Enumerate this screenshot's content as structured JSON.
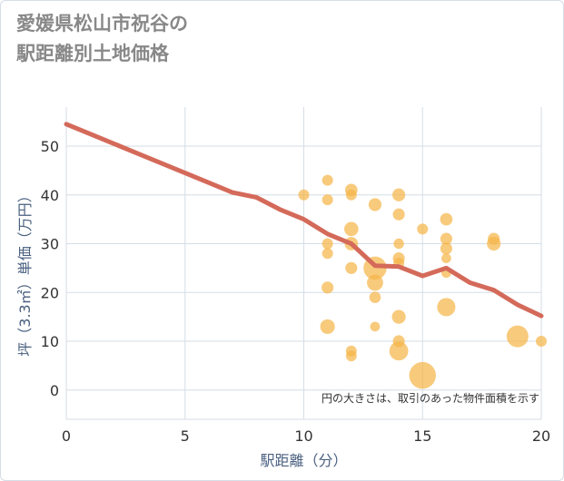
{
  "title": {
    "line1": "愛媛県松山市祝谷の",
    "line2": "駅距離別土地価格"
  },
  "colors": {
    "line": "#d46a5a",
    "bubble": "#f5b54a",
    "grid": "#d5dde6",
    "axis_label": "#4a6080"
  },
  "chart_data": {
    "type": "scatter",
    "title": "愛媛県松山市祝谷の駅距離別土地価格",
    "xlabel": "駅距離（分）",
    "ylabel": "坪（3.3㎡）単価（万円）",
    "xlim": [
      0,
      20
    ],
    "ylim": [
      -6,
      58
    ],
    "xticks": [
      0,
      5,
      10,
      15,
      20
    ],
    "yticks": [
      0,
      10,
      20,
      30,
      40,
      50
    ],
    "xtick_labels": [
      "0",
      "5",
      "10",
      "15",
      "20"
    ],
    "ytick_labels": [
      "0",
      "10",
      "20",
      "30",
      "40",
      "50"
    ],
    "note": "円の大きさは、取引のあった物件面積を示す",
    "series": [
      {
        "name": "trend",
        "type": "line",
        "x": [
          0,
          1,
          2,
          3,
          4,
          5,
          6,
          7,
          8,
          9,
          10,
          11,
          12,
          13,
          14,
          15,
          16,
          17,
          18,
          19,
          20
        ],
        "y": [
          54.5,
          52.5,
          50.5,
          48.5,
          46.5,
          44.5,
          42.5,
          40.5,
          39.5,
          37,
          35,
          32,
          30,
          25.5,
          25.3,
          23.4,
          25,
          22,
          20.5,
          17.5,
          15.2
        ]
      },
      {
        "name": "transactions",
        "type": "scatter",
        "points": [
          {
            "x": 10,
            "y": 40,
            "size": 1
          },
          {
            "x": 11,
            "y": 43,
            "size": 1
          },
          {
            "x": 11,
            "y": 39,
            "size": 1
          },
          {
            "x": 11,
            "y": 30,
            "size": 1
          },
          {
            "x": 11,
            "y": 28,
            "size": 1
          },
          {
            "x": 11,
            "y": 21,
            "size": 1.2
          },
          {
            "x": 11,
            "y": 13,
            "size": 1.8
          },
          {
            "x": 12,
            "y": 41,
            "size": 1.3
          },
          {
            "x": 12,
            "y": 40,
            "size": 1
          },
          {
            "x": 12,
            "y": 33,
            "size": 1.7
          },
          {
            "x": 12,
            "y": 30,
            "size": 1.5
          },
          {
            "x": 12,
            "y": 25,
            "size": 1.2
          },
          {
            "x": 12,
            "y": 8,
            "size": 1
          },
          {
            "x": 12,
            "y": 7,
            "size": 1
          },
          {
            "x": 13,
            "y": 38,
            "size": 1.4
          },
          {
            "x": 13,
            "y": 25,
            "size": 4.5
          },
          {
            "x": 13,
            "y": 22,
            "size": 2.2
          },
          {
            "x": 13,
            "y": 19,
            "size": 1.1
          },
          {
            "x": 13,
            "y": 13,
            "size": 0.8
          },
          {
            "x": 14,
            "y": 40,
            "size": 1.4
          },
          {
            "x": 14,
            "y": 36,
            "size": 1.2
          },
          {
            "x": 14,
            "y": 30,
            "size": 0.9
          },
          {
            "x": 14,
            "y": 27,
            "size": 1.2
          },
          {
            "x": 14,
            "y": 26,
            "size": 1
          },
          {
            "x": 14,
            "y": 15,
            "size": 1.6
          },
          {
            "x": 14,
            "y": 10,
            "size": 1.2
          },
          {
            "x": 14,
            "y": 8,
            "size": 3
          },
          {
            "x": 15,
            "y": 33,
            "size": 1
          },
          {
            "x": 15,
            "y": 3,
            "size": 6
          },
          {
            "x": 16,
            "y": 35,
            "size": 1.3
          },
          {
            "x": 16,
            "y": 31,
            "size": 1.2
          },
          {
            "x": 16,
            "y": 29,
            "size": 1.2
          },
          {
            "x": 16,
            "y": 27,
            "size": 0.8
          },
          {
            "x": 16,
            "y": 24,
            "size": 0.8
          },
          {
            "x": 16,
            "y": 17,
            "size": 2.8
          },
          {
            "x": 18,
            "y": 31,
            "size": 1.2
          },
          {
            "x": 18,
            "y": 30,
            "size": 1.6
          },
          {
            "x": 19,
            "y": 11,
            "size": 4
          },
          {
            "x": 20,
            "y": 10,
            "size": 1
          }
        ]
      }
    ]
  }
}
